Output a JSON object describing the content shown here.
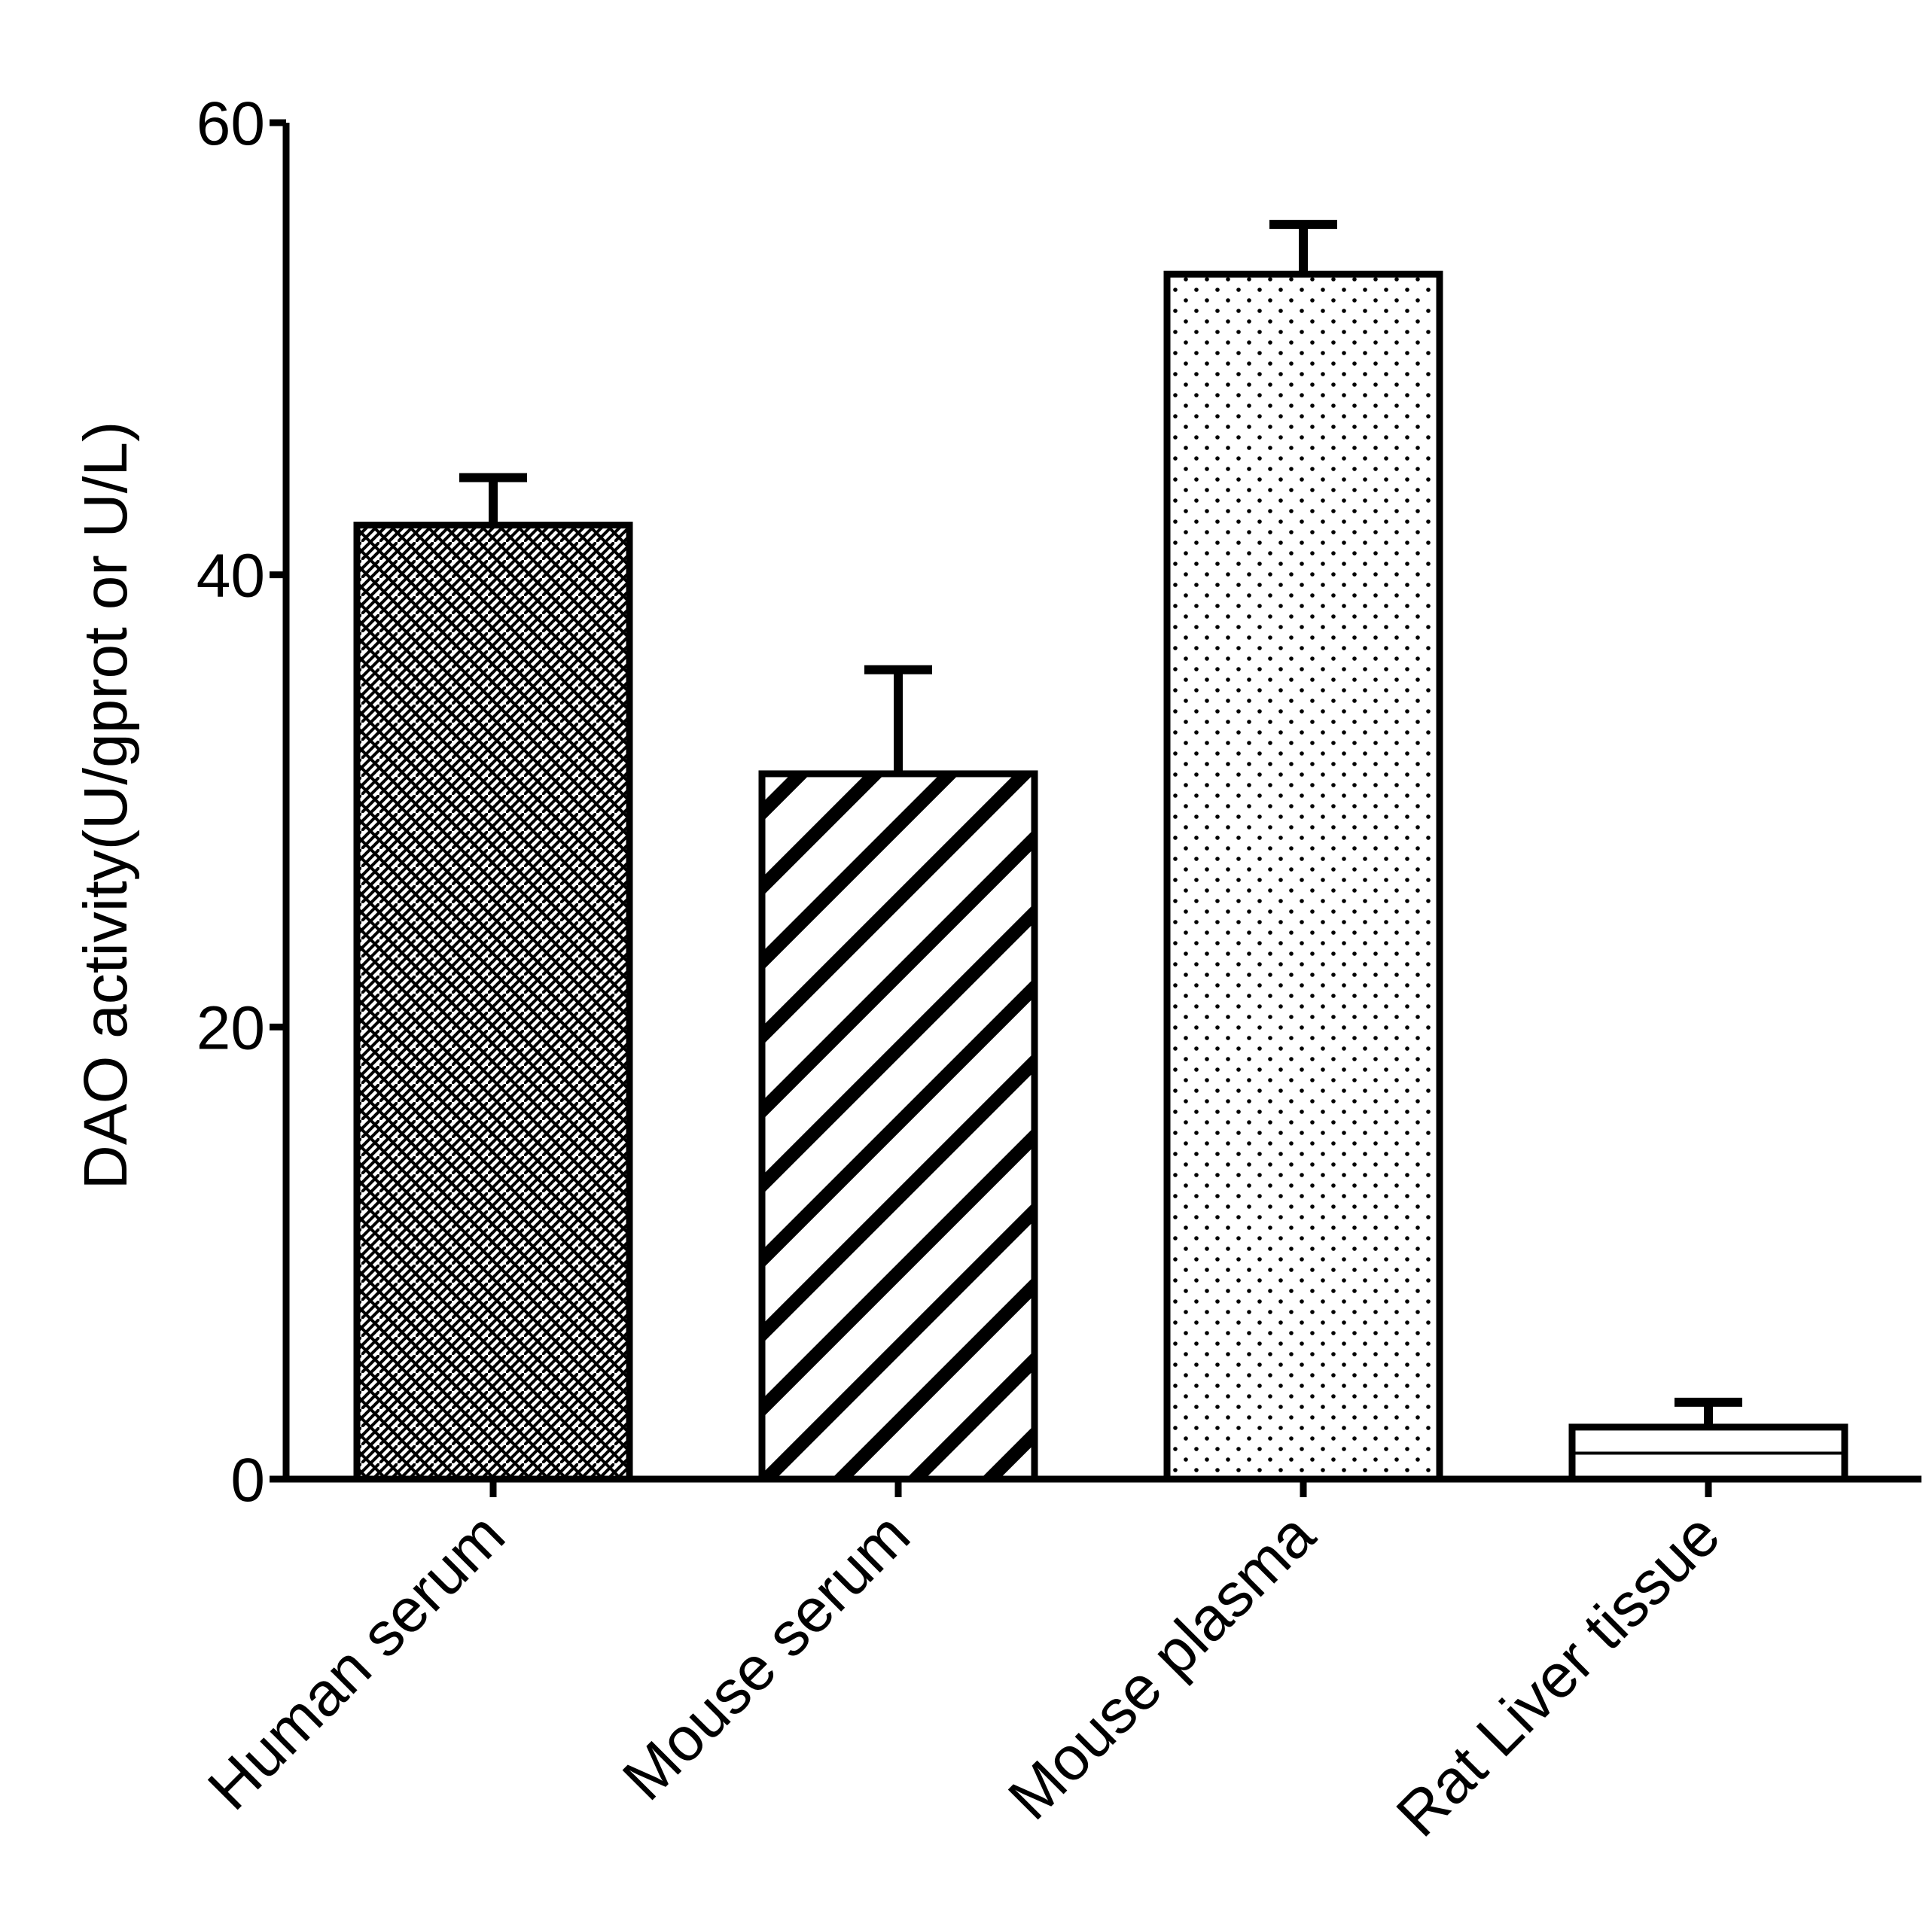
{
  "chart_data": {
    "type": "bar",
    "categories": [
      "Human serum",
      "Mouse serum",
      "Mouse plasma",
      "Rat Liver tissue"
    ],
    "values": [
      42.2,
      31.2,
      53.3,
      2.3
    ],
    "errors": [
      2.1,
      4.6,
      2.2,
      1.1
    ],
    "patterns": [
      "brick-hatch",
      "diagonal-stripes",
      "dots",
      "horizontal-line"
    ],
    "title": "",
    "xlabel": "",
    "ylabel": "DAO activity(U/gprot or U/L)",
    "ylim": [
      0,
      60
    ],
    "yticks": [
      0,
      20,
      40,
      60
    ],
    "grid": false,
    "colors": {
      "stroke": "#000000",
      "fill": "#ffffff"
    }
  }
}
